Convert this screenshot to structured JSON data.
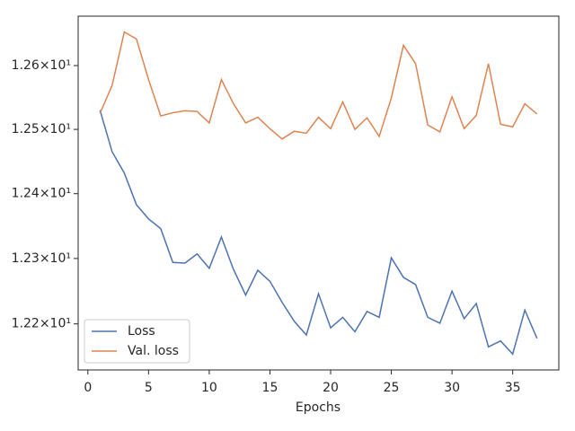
{
  "chart_data": {
    "type": "line",
    "xlabel": "Epochs",
    "x": [
      1,
      2,
      3,
      4,
      5,
      6,
      7,
      8,
      9,
      10,
      11,
      12,
      13,
      14,
      15,
      16,
      17,
      18,
      19,
      20,
      21,
      22,
      23,
      24,
      25,
      26,
      27,
      28,
      29,
      30,
      31,
      32,
      33,
      34,
      35,
      36,
      37
    ],
    "series": [
      {
        "name": "Loss",
        "color": "#4c72b0",
        "values": [
          12.53,
          12.465,
          12.432,
          12.383,
          12.361,
          12.346,
          12.294,
          12.293,
          12.307,
          12.285,
          12.333,
          12.283,
          12.244,
          12.282,
          12.265,
          12.233,
          12.204,
          12.183,
          12.246,
          12.194,
          12.21,
          12.188,
          12.219,
          12.21,
          12.301,
          12.271,
          12.26,
          12.21,
          12.201,
          12.25,
          12.208,
          12.231,
          12.165,
          12.174,
          12.154,
          12.221,
          12.178
        ]
      },
      {
        "name": "Val. loss",
        "color": "#dd8452",
        "values": [
          12.525,
          12.569,
          12.653,
          12.642,
          12.578,
          12.521,
          12.526,
          12.529,
          12.528,
          12.51,
          12.578,
          12.54,
          12.51,
          12.519,
          12.501,
          12.485,
          12.497,
          12.494,
          12.519,
          12.501,
          12.543,
          12.5,
          12.518,
          12.489,
          12.549,
          12.632,
          12.603,
          12.507,
          12.496,
          12.551,
          12.501,
          12.522,
          12.603,
          12.508,
          12.504,
          12.54,
          12.524
        ]
      }
    ],
    "xlim": [
      -0.8,
      38.8
    ],
    "xticks": [
      0,
      5,
      10,
      15,
      20,
      25,
      30,
      35
    ],
    "ylim": [
      12.13,
      12.678
    ],
    "ylog": true,
    "yticks": [
      {
        "value": 12.2,
        "label": "1.22×10¹"
      },
      {
        "value": 12.3,
        "label": "1.23×10¹"
      },
      {
        "value": 12.4,
        "label": "1.24×10¹"
      },
      {
        "value": 12.5,
        "label": "1.25×10¹"
      },
      {
        "value": 12.6,
        "label": "1.26×10¹"
      }
    ],
    "legend": "lower left"
  }
}
